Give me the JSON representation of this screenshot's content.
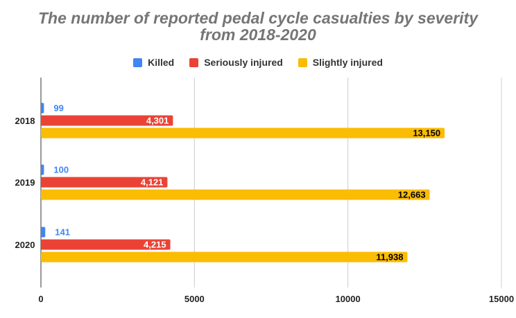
{
  "chart_data": {
    "type": "bar",
    "orientation": "horizontal",
    "title_lines": [
      "The number of reported pedal cycle casualties by severity",
      "from 2018-2020"
    ],
    "categories": [
      "2018",
      "2019",
      "2020"
    ],
    "series": [
      {
        "name": "Killed",
        "color": "#4285f4",
        "values": [
          99,
          100,
          141
        ],
        "labels": [
          "99",
          "100",
          "141"
        ]
      },
      {
        "name": "Seriously injured",
        "color": "#ea4335",
        "values": [
          4301,
          4121,
          4215
        ],
        "labels": [
          "4,301",
          "4,121",
          "4,215"
        ]
      },
      {
        "name": "Slightly injured",
        "color": "#fbbc04",
        "values": [
          13150,
          12663,
          11938
        ],
        "labels": [
          "13,150",
          "12,663",
          "11,938"
        ]
      }
    ],
    "x_ticks": [
      0,
      5000,
      10000,
      15000
    ],
    "xlim": [
      0,
      15000
    ],
    "grid": true,
    "legend_position": "top"
  }
}
